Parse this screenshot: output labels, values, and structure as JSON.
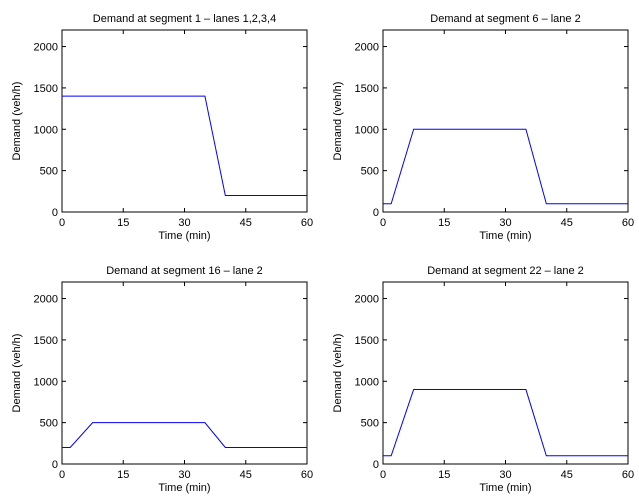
{
  "chart_data": [
    {
      "type": "line",
      "title": "Demand at segment 1 – lanes 1,2,3,4",
      "xlabel": "Time (min)",
      "ylabel": "Demand (veh/h)",
      "xlim": [
        0,
        60
      ],
      "ylim": [
        0,
        2200
      ],
      "xticks": [
        0,
        15,
        30,
        45,
        60
      ],
      "yticks": [
        0,
        500,
        1000,
        1500,
        2000
      ],
      "grid": false,
      "series": [
        {
          "color": "#0000ff",
          "x": [
            0,
            35,
            40,
            60
          ],
          "y": [
            1400,
            1400,
            200,
            200
          ]
        }
      ]
    },
    {
      "type": "line",
      "title": "Demand at segment 6 – lane 2",
      "xlabel": "Time (min)",
      "ylabel": "Demand (veh/h)",
      "xlim": [
        0,
        60
      ],
      "ylim": [
        0,
        2200
      ],
      "xticks": [
        0,
        15,
        30,
        45,
        60
      ],
      "yticks": [
        0,
        500,
        1000,
        1500,
        2000
      ],
      "grid": false,
      "series": [
        {
          "color": "#0000ff",
          "x": [
            0,
            2,
            7.5,
            35,
            40,
            60
          ],
          "y": [
            100,
            100,
            1000,
            1000,
            100,
            100
          ]
        }
      ]
    },
    {
      "type": "line",
      "title": "Demand at segment 16 – lane 2",
      "xlabel": "Time (min)",
      "ylabel": "Demand (veh/h)",
      "xlim": [
        0,
        60
      ],
      "ylim": [
        0,
        2200
      ],
      "xticks": [
        0,
        15,
        30,
        45,
        60
      ],
      "yticks": [
        0,
        500,
        1000,
        1500,
        2000
      ],
      "grid": false,
      "series": [
        {
          "color": "#0000ff",
          "x": [
            0,
            2,
            7.5,
            35,
            40,
            60
          ],
          "y": [
            200,
            200,
            500,
            500,
            200,
            200
          ]
        }
      ]
    },
    {
      "type": "line",
      "title": "Demand at segment 22 – lane 2",
      "xlabel": "Time (min)",
      "ylabel": "Demand (veh/h)",
      "xlim": [
        0,
        60
      ],
      "ylim": [
        0,
        2200
      ],
      "xticks": [
        0,
        15,
        30,
        45,
        60
      ],
      "yticks": [
        0,
        500,
        1000,
        1500,
        2000
      ],
      "grid": false,
      "series": [
        {
          "color": "#0000ff",
          "x": [
            0,
            2,
            7.5,
            35,
            40,
            60
          ],
          "y": [
            100,
            100,
            900,
            900,
            100,
            100
          ]
        }
      ]
    }
  ]
}
